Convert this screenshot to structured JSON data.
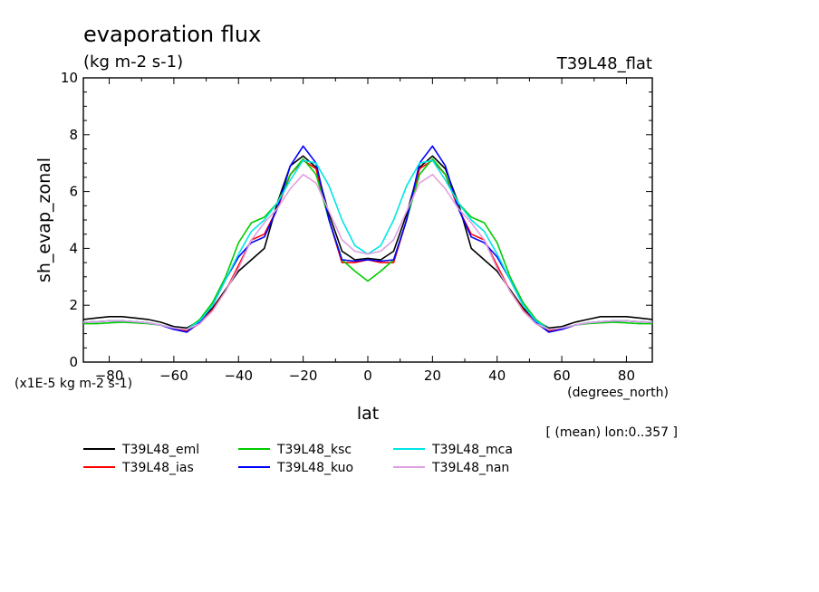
{
  "chart_data": {
    "type": "line",
    "title": "evaporation flux",
    "subtitle": "(kg m-2 s-1)",
    "experiment": "T39L48_flat",
    "xlabel": "lat",
    "xunit": "(degrees_north)",
    "ylabel": "sh_evap_zonal",
    "yunit": "(x1E-5 kg m-2 s-1)",
    "note": "[ (mean) lon:0..357 ]",
    "xlim": [
      -88,
      88
    ],
    "ylim": [
      0,
      10
    ],
    "x_ticks": [
      -80,
      -60,
      -40,
      -20,
      0,
      20,
      40,
      60,
      80
    ],
    "y_ticks": [
      0,
      2,
      4,
      6,
      8,
      10
    ],
    "grid": false,
    "legend_position": "bottom-left",
    "x": [
      -88,
      -84,
      -80,
      -76,
      -72,
      -68,
      -64,
      -60,
      -56,
      -52,
      -48,
      -44,
      -40,
      -36,
      -32,
      -28,
      -24,
      -20,
      -16,
      -12,
      -8,
      -4,
      0,
      4,
      8,
      12,
      16,
      20,
      24,
      28,
      32,
      36,
      40,
      44,
      48,
      52,
      56,
      60,
      64,
      68,
      72,
      76,
      80,
      84,
      88
    ],
    "series": [
      {
        "name": "T39L48_eml",
        "color": "#000000",
        "values": [
          1.5,
          1.55,
          1.6,
          1.6,
          1.55,
          1.5,
          1.4,
          1.25,
          1.2,
          1.45,
          1.9,
          2.55,
          3.2,
          3.6,
          4.0,
          5.6,
          6.9,
          7.25,
          6.85,
          5.2,
          3.9,
          3.6,
          3.65,
          3.6,
          3.9,
          5.2,
          6.85,
          7.25,
          6.8,
          5.6,
          4.0,
          3.6,
          3.2,
          2.55,
          1.9,
          1.45,
          1.2,
          1.25,
          1.4,
          1.5,
          1.6,
          1.6,
          1.6,
          1.55,
          1.5
        ]
      },
      {
        "name": "T39L48_ias",
        "color": "#ff0000",
        "values": [
          1.4,
          1.42,
          1.45,
          1.45,
          1.42,
          1.38,
          1.3,
          1.15,
          1.1,
          1.35,
          1.85,
          2.5,
          3.4,
          4.3,
          4.5,
          5.4,
          6.6,
          7.1,
          6.8,
          5.0,
          3.5,
          3.5,
          3.6,
          3.5,
          3.5,
          5.0,
          6.8,
          7.1,
          6.6,
          5.4,
          4.5,
          4.3,
          3.4,
          2.5,
          1.85,
          1.35,
          1.1,
          1.15,
          1.3,
          1.38,
          1.42,
          1.45,
          1.45,
          1.42,
          1.4
        ]
      },
      {
        "name": "T39L48_ksc",
        "color": "#00cc00",
        "values": [
          1.35,
          1.35,
          1.38,
          1.4,
          1.38,
          1.35,
          1.3,
          1.2,
          1.15,
          1.5,
          2.1,
          3.0,
          4.2,
          4.9,
          5.1,
          5.6,
          6.6,
          7.15,
          6.6,
          5.0,
          3.6,
          3.2,
          2.85,
          3.2,
          3.6,
          5.0,
          6.6,
          7.15,
          6.6,
          5.6,
          5.1,
          4.9,
          4.2,
          3.0,
          2.1,
          1.5,
          1.15,
          1.2,
          1.3,
          1.35,
          1.38,
          1.4,
          1.38,
          1.35,
          1.35
        ]
      },
      {
        "name": "T39L48_kuo",
        "color": "#0000ff",
        "values": [
          1.4,
          1.42,
          1.45,
          1.45,
          1.42,
          1.38,
          1.3,
          1.15,
          1.05,
          1.4,
          2.0,
          2.9,
          3.7,
          4.2,
          4.4,
          5.4,
          6.9,
          7.6,
          7.0,
          5.0,
          3.6,
          3.55,
          3.6,
          3.55,
          3.6,
          5.0,
          7.0,
          7.6,
          6.9,
          5.4,
          4.4,
          4.2,
          3.7,
          2.9,
          2.0,
          1.4,
          1.05,
          1.15,
          1.3,
          1.38,
          1.42,
          1.45,
          1.45,
          1.42,
          1.4
        ]
      },
      {
        "name": "T39L48_mca",
        "color": "#00e5e5",
        "values": [
          1.4,
          1.42,
          1.45,
          1.45,
          1.42,
          1.38,
          1.3,
          1.2,
          1.15,
          1.45,
          2.0,
          2.9,
          3.8,
          4.6,
          5.0,
          5.6,
          6.4,
          7.1,
          7.0,
          6.2,
          5.0,
          4.1,
          3.8,
          4.1,
          5.0,
          6.2,
          7.0,
          7.1,
          6.4,
          5.6,
          5.0,
          4.6,
          3.8,
          2.9,
          2.0,
          1.45,
          1.15,
          1.2,
          1.3,
          1.38,
          1.42,
          1.45,
          1.45,
          1.42,
          1.4
        ]
      },
      {
        "name": "T39L48_nan",
        "color": "#e0a0e0",
        "values": [
          1.4,
          1.42,
          1.45,
          1.45,
          1.42,
          1.38,
          1.3,
          1.2,
          1.15,
          1.35,
          1.8,
          2.5,
          3.3,
          4.3,
          4.9,
          5.4,
          6.1,
          6.6,
          6.3,
          5.3,
          4.3,
          3.9,
          3.8,
          3.9,
          4.3,
          5.3,
          6.3,
          6.6,
          6.1,
          5.4,
          4.9,
          4.3,
          3.3,
          2.5,
          1.8,
          1.35,
          1.15,
          1.2,
          1.3,
          1.38,
          1.42,
          1.45,
          1.45,
          1.42,
          1.4
        ]
      }
    ]
  }
}
